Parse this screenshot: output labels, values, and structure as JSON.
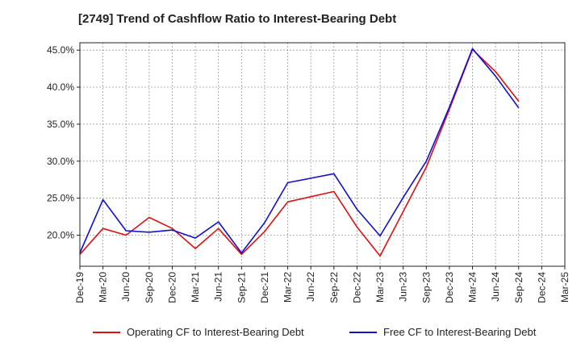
{
  "chart_data": {
    "type": "line",
    "title": "[2749]  Trend of Cashflow Ratio to Interest-Bearing Debt",
    "xlabel": "",
    "ylabel": "",
    "categories": [
      "Dec-19",
      "Mar-20",
      "Jun-20",
      "Sep-20",
      "Dec-20",
      "Mar-21",
      "Jun-21",
      "Sep-21",
      "Dec-21",
      "Mar-22",
      "Jun-22",
      "Sep-22",
      "Dec-22",
      "Mar-23",
      "Jun-23",
      "Sep-23",
      "Dec-23",
      "Mar-24",
      "Jun-24",
      "Sep-24",
      "Dec-24",
      "Mar-25"
    ],
    "y_ticks": [
      "20.0%",
      "25.0%",
      "30.0%",
      "35.0%",
      "40.0%",
      "45.0%"
    ],
    "y_tick_values": [
      20,
      25,
      30,
      35,
      40,
      45
    ],
    "ylim": [
      15.8,
      46
    ],
    "grid": true,
    "legend_position": "bottom",
    "series": [
      {
        "name": "Operating CF to Interest-Bearing Debt",
        "color": "#dd1111",
        "values": [
          17.4,
          20.9,
          20.0,
          22.4,
          20.9,
          18.2,
          20.9,
          17.4,
          20.5,
          24.5,
          25.2,
          25.9,
          21.1,
          17.2,
          23.2,
          29.2,
          37.0,
          45.1,
          42.1,
          38.1,
          null,
          null
        ]
      },
      {
        "name": "Free CF to Interest-Bearing Debt",
        "color": "#1111cc",
        "values": [
          17.6,
          24.8,
          20.6,
          20.4,
          20.7,
          19.6,
          21.8,
          17.6,
          21.7,
          27.1,
          27.7,
          28.3,
          23.5,
          19.9,
          25.1,
          30.0,
          37.3,
          45.2,
          41.5,
          37.2,
          null,
          null
        ]
      }
    ]
  }
}
